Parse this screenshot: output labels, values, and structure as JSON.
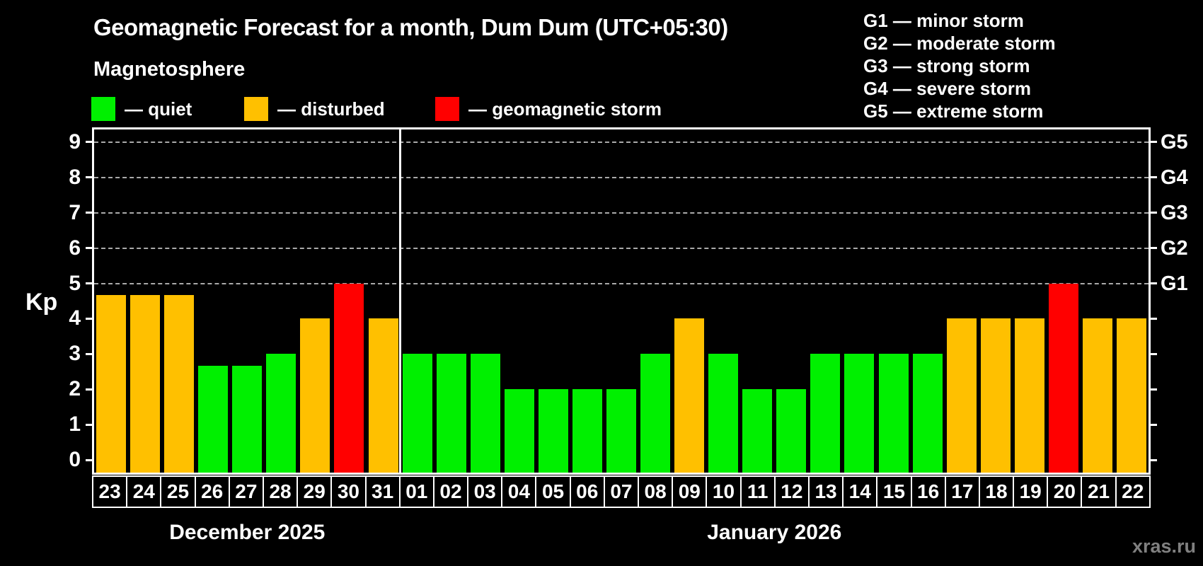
{
  "title": "Geomagnetic Forecast for a month, Dum Dum (UTC+05:30)",
  "subtitle": "Magnetosphere",
  "legend": {
    "quiet": "— quiet",
    "disturbed": "— disturbed",
    "storm": "— geomagnetic storm"
  },
  "storm_scale": [
    "G1 — minor storm",
    "G2 — moderate storm",
    "G3 — strong storm",
    "G4 — severe storm",
    "G5 — extreme storm"
  ],
  "watermark": "xras.ru",
  "colors": {
    "quiet": "#00F000",
    "disturbed": "#FFC000",
    "storm": "#FF0000",
    "axis": "#FFFFFF",
    "grid": "#AAAAAA",
    "background": "#000000",
    "watermark": "#808080"
  },
  "chart_data": {
    "type": "bar",
    "title": "Geomagnetic Forecast for a month, Dum Dum (UTC+05:30)",
    "subtitle": "Magnetosphere",
    "ylabel": "Kp",
    "ylim": [
      0,
      9
    ],
    "yticks": [
      0,
      1,
      2,
      3,
      4,
      5,
      6,
      7,
      8,
      9
    ],
    "gridlines_dashed_at": [
      5,
      6,
      7,
      8,
      9
    ],
    "grid": true,
    "legend_position": "top-left",
    "right_axis": [
      {
        "label": "G1",
        "kp": 5
      },
      {
        "label": "G2",
        "kp": 6
      },
      {
        "label": "G3",
        "kp": 7
      },
      {
        "label": "G4",
        "kp": 8
      },
      {
        "label": "G5",
        "kp": 9
      }
    ],
    "months": [
      "December 2025",
      "January 2026"
    ],
    "bars": [
      {
        "month": 0,
        "day": "23",
        "kp": 4.67,
        "status": "disturbed"
      },
      {
        "month": 0,
        "day": "24",
        "kp": 4.67,
        "status": "disturbed"
      },
      {
        "month": 0,
        "day": "25",
        "kp": 4.67,
        "status": "disturbed"
      },
      {
        "month": 0,
        "day": "26",
        "kp": 2.67,
        "status": "quiet"
      },
      {
        "month": 0,
        "day": "27",
        "kp": 2.67,
        "status": "quiet"
      },
      {
        "month": 0,
        "day": "28",
        "kp": 3,
        "status": "quiet"
      },
      {
        "month": 0,
        "day": "29",
        "kp": 4,
        "status": "disturbed"
      },
      {
        "month": 0,
        "day": "30",
        "kp": 5,
        "status": "storm"
      },
      {
        "month": 0,
        "day": "31",
        "kp": 4,
        "status": "disturbed"
      },
      {
        "month": 1,
        "day": "01",
        "kp": 3,
        "status": "quiet"
      },
      {
        "month": 1,
        "day": "02",
        "kp": 3,
        "status": "quiet"
      },
      {
        "month": 1,
        "day": "03",
        "kp": 3,
        "status": "quiet"
      },
      {
        "month": 1,
        "day": "04",
        "kp": 2,
        "status": "quiet"
      },
      {
        "month": 1,
        "day": "05",
        "kp": 2,
        "status": "quiet"
      },
      {
        "month": 1,
        "day": "06",
        "kp": 2,
        "status": "quiet"
      },
      {
        "month": 1,
        "day": "07",
        "kp": 2,
        "status": "quiet"
      },
      {
        "month": 1,
        "day": "08",
        "kp": 3,
        "status": "quiet"
      },
      {
        "month": 1,
        "day": "09",
        "kp": 4,
        "status": "disturbed"
      },
      {
        "month": 1,
        "day": "10",
        "kp": 3,
        "status": "quiet"
      },
      {
        "month": 1,
        "day": "11",
        "kp": 2,
        "status": "quiet"
      },
      {
        "month": 1,
        "day": "12",
        "kp": 2,
        "status": "quiet"
      },
      {
        "month": 1,
        "day": "13",
        "kp": 3,
        "status": "quiet"
      },
      {
        "month": 1,
        "day": "14",
        "kp": 3,
        "status": "quiet"
      },
      {
        "month": 1,
        "day": "15",
        "kp": 3,
        "status": "quiet"
      },
      {
        "month": 1,
        "day": "16",
        "kp": 3,
        "status": "quiet"
      },
      {
        "month": 1,
        "day": "17",
        "kp": 4,
        "status": "disturbed"
      },
      {
        "month": 1,
        "day": "18",
        "kp": 4,
        "status": "disturbed"
      },
      {
        "month": 1,
        "day": "19",
        "kp": 4,
        "status": "disturbed"
      },
      {
        "month": 1,
        "day": "20",
        "kp": 5,
        "status": "storm"
      },
      {
        "month": 1,
        "day": "21",
        "kp": 4,
        "status": "disturbed"
      },
      {
        "month": 1,
        "day": "22",
        "kp": 4,
        "status": "disturbed"
      }
    ]
  }
}
